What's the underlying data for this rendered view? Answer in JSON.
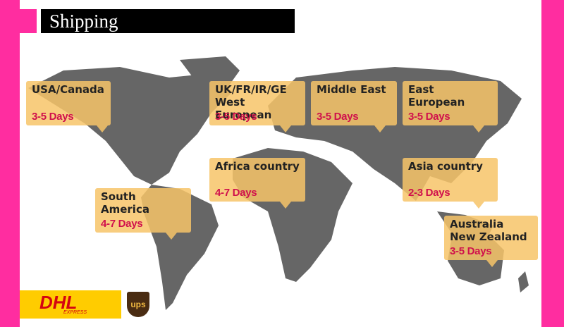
{
  "header": {
    "title": "Shipping"
  },
  "regions": [
    {
      "name_lines": [
        "USA/Canada"
      ],
      "time": "3-5 Days"
    },
    {
      "name_lines": [
        "UK/FR/IR/GE",
        "West European"
      ],
      "time": "3-5 Days"
    },
    {
      "name_lines": [
        "Middle East"
      ],
      "time": "3-5 Days"
    },
    {
      "name_lines": [
        "East European"
      ],
      "time": "3-5 Days"
    },
    {
      "name_lines": [
        "Africa country"
      ],
      "time": "4-7 Days"
    },
    {
      "name_lines": [
        "Asia country"
      ],
      "time": "2-3 Days"
    },
    {
      "name_lines": [
        "South America"
      ],
      "time": "4-7 Days"
    },
    {
      "name_lines": [
        "Australia",
        "New Zealand"
      ],
      "time": "3-5 Days"
    }
  ],
  "logos": {
    "dhl": "DHL",
    "dhl_sub": "EXPRESS",
    "ups": "ups"
  }
}
